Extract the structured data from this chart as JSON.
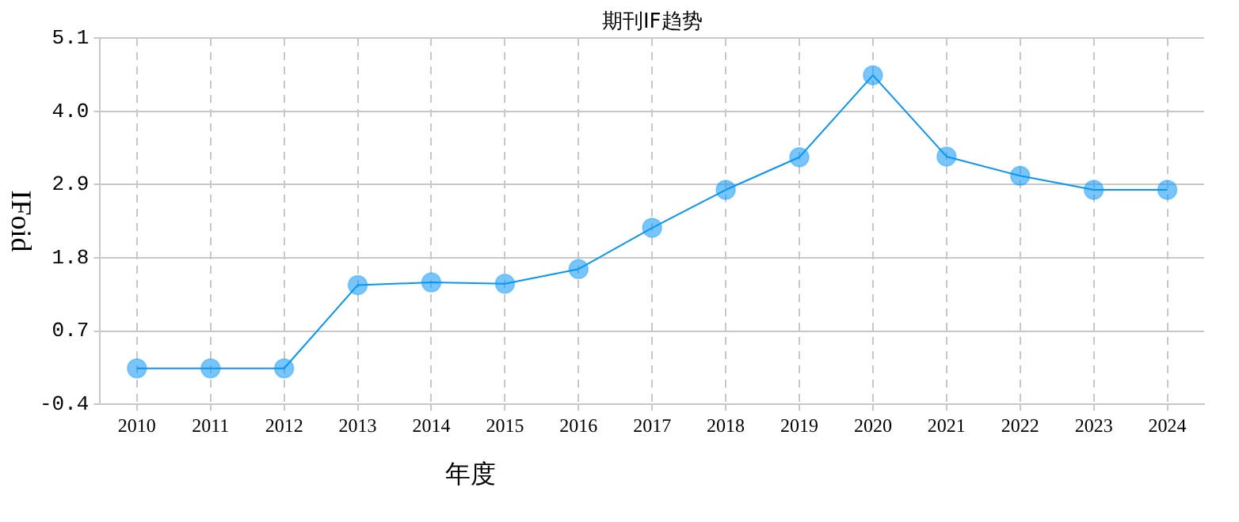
{
  "chart_data": {
    "type": "line",
    "title": "期刊IF趋势",
    "xlabel": "年度",
    "ylabel": "IFoid",
    "categories": [
      "2010",
      "2011",
      "2012",
      "2013",
      "2014",
      "2015",
      "2016",
      "2017",
      "2018",
      "2019",
      "2020",
      "2021",
      "2022",
      "2023",
      "2024"
    ],
    "series": [
      {
        "color": "#0895f5",
        "values": [
          0.14,
          0.14,
          0.14,
          1.39,
          1.43,
          1.41,
          1.63,
          2.25,
          2.82,
          3.31,
          4.54,
          3.32,
          3.03,
          2.82,
          2.82
        ]
      }
    ],
    "ylim": [
      -0.4,
      5.1
    ],
    "yticks": [
      -0.4,
      0.7,
      1.8,
      2.9,
      {
        "value": 4,
        "label": "4.0"
      },
      5.1
    ],
    "grid": true,
    "marker": "circle",
    "line_style": "solid",
    "legend": false
  }
}
